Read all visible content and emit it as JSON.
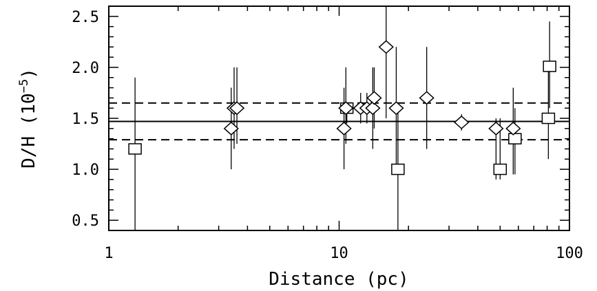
{
  "chart_data": {
    "type": "scatter",
    "title": "",
    "xlabel": "Distance (pc)",
    "ylabel_main": "D/H (10",
    "ylabel_exp": "−5",
    "ylabel_close": ")",
    "xscale": "log",
    "xlim": [
      1,
      100
    ],
    "ylim": [
      0.4,
      2.6
    ],
    "x_ticks": [
      {
        "value": 1,
        "label": "1"
      },
      {
        "value": 10,
        "label": "10"
      },
      {
        "value": 100,
        "label": "100"
      }
    ],
    "y_ticks": [
      {
        "value": 0.5,
        "label": "0.5"
      },
      {
        "value": 1.0,
        "label": "1.0"
      },
      {
        "value": 1.5,
        "label": "1.5"
      },
      {
        "value": 2.0,
        "label": "2.0"
      },
      {
        "value": 2.5,
        "label": "2.5"
      }
    ],
    "reference_lines": [
      {
        "y": 1.47,
        "style": "solid"
      },
      {
        "y": 1.65,
        "style": "dashed"
      },
      {
        "y": 1.29,
        "style": "dashed"
      }
    ],
    "grid": false,
    "series": [
      {
        "marker": "square",
        "points": [
          {
            "x": 1.3,
            "y": 1.2,
            "lo": 0.4,
            "hi": 1.9
          },
          {
            "x": 10.8,
            "y": 1.6,
            "lo": 1.45,
            "hi": 1.65
          },
          {
            "x": 18.0,
            "y": 1.0,
            "lo": 0.4,
            "hi": 1.6
          },
          {
            "x": 50.0,
            "y": 1.0,
            "lo": 0.9,
            "hi": 1.5
          },
          {
            "x": 58.0,
            "y": 1.3,
            "lo": 0.95,
            "hi": 1.6
          },
          {
            "x": 81.0,
            "y": 1.5,
            "lo": 1.1,
            "hi": 2.0
          },
          {
            "x": 82.0,
            "y": 2.01,
            "lo": 1.6,
            "hi": 2.45
          }
        ]
      },
      {
        "marker": "diamond",
        "points": [
          {
            "x": 3.4,
            "y": 1.4,
            "lo": 1.0,
            "hi": 1.8
          },
          {
            "x": 3.5,
            "y": 1.6,
            "lo": 1.2,
            "hi": 2.0
          },
          {
            "x": 3.6,
            "y": 1.6,
            "lo": 1.25,
            "hi": 2.0
          },
          {
            "x": 10.5,
            "y": 1.4,
            "lo": 1.0,
            "hi": 1.8
          },
          {
            "x": 10.7,
            "y": 1.6,
            "lo": 1.25,
            "hi": 2.0
          },
          {
            "x": 12.4,
            "y": 1.6,
            "lo": 1.45,
            "hi": 1.75
          },
          {
            "x": 13.2,
            "y": 1.6,
            "lo": 1.45,
            "hi": 1.75
          },
          {
            "x": 14.0,
            "y": 1.6,
            "lo": 1.2,
            "hi": 2.0
          },
          {
            "x": 14.2,
            "y": 1.7,
            "lo": 1.4,
            "hi": 2.0
          },
          {
            "x": 16.0,
            "y": 2.2,
            "lo": 1.5,
            "hi": 2.6
          },
          {
            "x": 17.7,
            "y": 1.6,
            "lo": 1.0,
            "hi": 2.2
          },
          {
            "x": 24.0,
            "y": 1.7,
            "lo": 1.2,
            "hi": 2.2
          },
          {
            "x": 34.0,
            "y": 1.46,
            "lo": 1.38,
            "hi": 1.54
          },
          {
            "x": 48.0,
            "y": 1.4,
            "lo": 0.9,
            "hi": 1.5
          },
          {
            "x": 57.0,
            "y": 1.4,
            "lo": 0.95,
            "hi": 1.8
          }
        ]
      }
    ]
  }
}
